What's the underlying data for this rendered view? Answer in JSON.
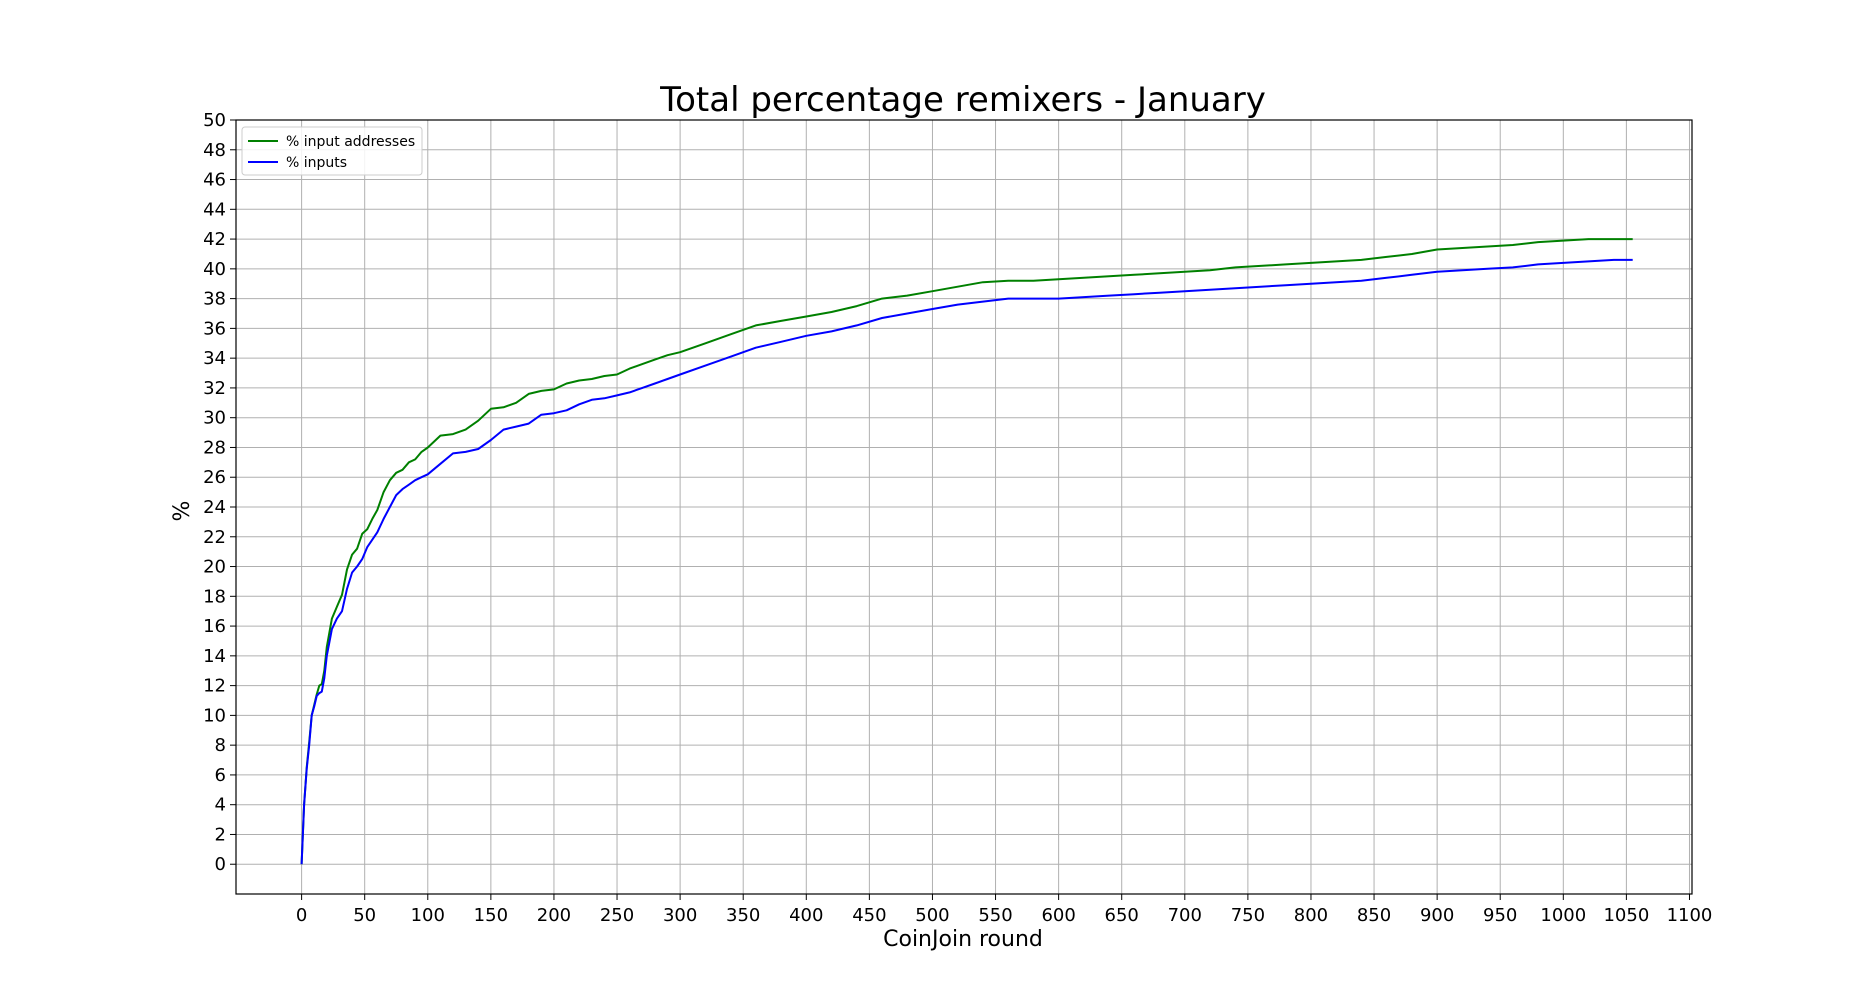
{
  "chart_data": {
    "type": "line",
    "title": "Total percentage remixers - January",
    "xlabel": "CoinJoin round",
    "ylabel": "%",
    "xlim": [
      -52,
      1102
    ],
    "ylim": [
      -2,
      50
    ],
    "xticks": [
      0,
      50,
      100,
      150,
      200,
      250,
      300,
      350,
      400,
      450,
      500,
      550,
      600,
      650,
      700,
      750,
      800,
      850,
      900,
      950,
      1000,
      1050,
      1100
    ],
    "yticks": [
      0,
      2,
      4,
      6,
      8,
      10,
      12,
      14,
      16,
      18,
      20,
      22,
      24,
      26,
      28,
      30,
      32,
      34,
      36,
      38,
      40,
      42,
      44,
      46,
      48,
      50
    ],
    "grid": true,
    "legend_position": "top-left",
    "series": [
      {
        "name": "% input addresses",
        "color": "#008000",
        "x": [
          0,
          2,
          4,
          6,
          8,
          10,
          12,
          14,
          16,
          18,
          20,
          24,
          28,
          32,
          36,
          40,
          44,
          48,
          52,
          56,
          60,
          65,
          70,
          75,
          80,
          85,
          90,
          95,
          100,
          110,
          120,
          130,
          140,
          150,
          160,
          170,
          180,
          190,
          200,
          210,
          220,
          230,
          240,
          250,
          260,
          270,
          280,
          290,
          300,
          320,
          340,
          360,
          380,
          400,
          420,
          440,
          460,
          480,
          500,
          520,
          540,
          560,
          580,
          600,
          620,
          640,
          660,
          680,
          700,
          720,
          740,
          760,
          780,
          800,
          820,
          840,
          860,
          880,
          900,
          920,
          940,
          960,
          980,
          1000,
          1020,
          1040,
          1055
        ],
        "y": [
          0,
          4,
          6.5,
          8.2,
          10,
          10.7,
          11.4,
          12.0,
          12.1,
          13.0,
          14.6,
          16.5,
          17.3,
          18.1,
          19.8,
          20.8,
          21.2,
          22.2,
          22.5,
          23.2,
          23.8,
          25.0,
          25.8,
          26.3,
          26.5,
          27.0,
          27.2,
          27.7,
          28.0,
          28.8,
          28.9,
          29.2,
          29.8,
          30.6,
          30.7,
          31.0,
          31.6,
          31.8,
          31.9,
          32.3,
          32.5,
          32.6,
          32.8,
          32.9,
          33.3,
          33.6,
          33.9,
          34.2,
          34.4,
          35.0,
          35.6,
          36.2,
          36.5,
          36.8,
          37.1,
          37.5,
          38.0,
          38.2,
          38.5,
          38.8,
          39.1,
          39.2,
          39.2,
          39.3,
          39.4,
          39.5,
          39.6,
          39.7,
          39.8,
          39.9,
          40.1,
          40.2,
          40.3,
          40.4,
          40.5,
          40.6,
          40.8,
          41.0,
          41.3,
          41.4,
          41.5,
          41.6,
          41.8,
          41.9,
          42.0,
          42.0,
          42.0
        ]
      },
      {
        "name": "% inputs",
        "color": "#0000ff",
        "x": [
          0,
          2,
          4,
          6,
          8,
          10,
          12,
          14,
          16,
          18,
          20,
          24,
          28,
          32,
          36,
          40,
          44,
          48,
          52,
          56,
          60,
          65,
          70,
          75,
          80,
          85,
          90,
          95,
          100,
          110,
          120,
          130,
          140,
          150,
          160,
          170,
          180,
          190,
          200,
          210,
          220,
          230,
          240,
          250,
          260,
          270,
          280,
          290,
          300,
          320,
          340,
          360,
          380,
          400,
          420,
          440,
          460,
          480,
          500,
          520,
          540,
          560,
          580,
          600,
          620,
          640,
          660,
          680,
          700,
          720,
          740,
          760,
          780,
          800,
          820,
          840,
          860,
          880,
          900,
          920,
          940,
          960,
          980,
          1000,
          1020,
          1040,
          1055
        ],
        "y": [
          0,
          4,
          6.4,
          8.0,
          10.0,
          10.6,
          11.3,
          11.5,
          11.6,
          12.5,
          14.0,
          15.8,
          16.5,
          17.0,
          18.5,
          19.6,
          20.0,
          20.5,
          21.3,
          21.8,
          22.3,
          23.2,
          24.0,
          24.8,
          25.2,
          25.5,
          25.8,
          26.0,
          26.2,
          26.9,
          27.6,
          27.7,
          27.9,
          28.5,
          29.2,
          29.4,
          29.6,
          30.2,
          30.3,
          30.5,
          30.9,
          31.2,
          31.3,
          31.5,
          31.7,
          32.0,
          32.3,
          32.6,
          32.9,
          33.5,
          34.1,
          34.7,
          35.1,
          35.5,
          35.8,
          36.2,
          36.7,
          37.0,
          37.3,
          37.6,
          37.8,
          38.0,
          38.0,
          38.0,
          38.1,
          38.2,
          38.3,
          38.4,
          38.5,
          38.6,
          38.7,
          38.8,
          38.9,
          39.0,
          39.1,
          39.2,
          39.4,
          39.6,
          39.8,
          39.9,
          40.0,
          40.1,
          40.3,
          40.4,
          40.5,
          40.6,
          40.6
        ]
      }
    ]
  }
}
